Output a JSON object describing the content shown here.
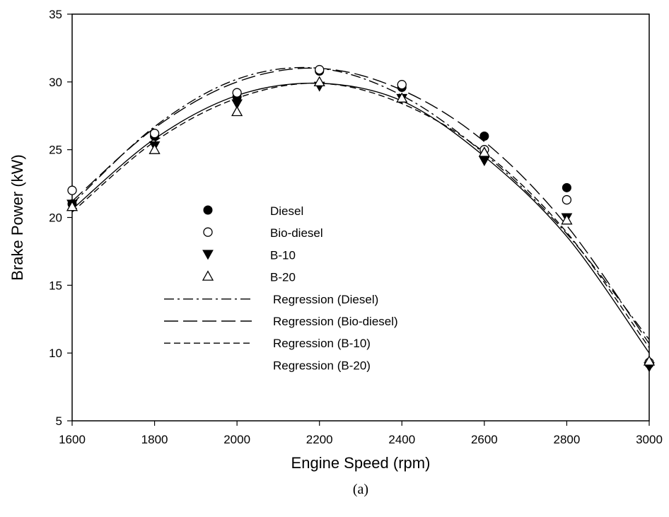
{
  "chart_data": {
    "type": "scatter",
    "xlabel": "Engine Speed (rpm)",
    "ylabel": "Brake Power (kW)",
    "caption": "(a)",
    "xlim": [
      1600,
      3000
    ],
    "ylim": [
      5,
      35
    ],
    "xticks": [
      1600,
      1800,
      2000,
      2200,
      2400,
      2600,
      2800,
      3000
    ],
    "yticks": [
      5,
      10,
      15,
      20,
      25,
      30,
      35
    ],
    "grid": false,
    "legend_position": "center-left",
    "x": [
      1600,
      1800,
      2000,
      2200,
      2400,
      2600,
      2800,
      3000
    ],
    "series": [
      {
        "name": "Diesel",
        "marker": "filled-circle",
        "values": [
          21.0,
          26.0,
          28.9,
          30.8,
          29.6,
          26.0,
          22.2,
          9.2
        ]
      },
      {
        "name": "Bio-diesel",
        "marker": "open-circle",
        "values": [
          22.0,
          26.2,
          29.2,
          30.9,
          29.8,
          25.0,
          21.3,
          9.3
        ]
      },
      {
        "name": "B-10",
        "marker": "filled-triangle-down",
        "values": [
          21.0,
          25.3,
          28.4,
          29.7,
          28.8,
          24.2,
          20.0,
          9.0
        ]
      },
      {
        "name": "B-20",
        "marker": "open-triangle-up",
        "values": [
          20.8,
          25.0,
          27.8,
          30.0,
          28.8,
          24.8,
          19.8,
          9.4
        ]
      }
    ],
    "regressions": [
      {
        "name": "Regression (Diesel)",
        "dash": "dash-dot",
        "values": [
          21.0,
          26.7,
          30.2,
          31.0,
          29.0,
          24.7,
          18.8,
          11.0
        ]
      },
      {
        "name": "Regression (Bio-diesel)",
        "dash": "long-dash",
        "values": [
          21.2,
          26.6,
          30.0,
          31.0,
          29.4,
          25.6,
          19.4,
          10.7
        ]
      },
      {
        "name": "Regression (B-10)",
        "dash": "short-dash",
        "values": [
          20.4,
          25.6,
          28.8,
          29.9,
          28.4,
          24.8,
          18.9,
          10.4
        ]
      },
      {
        "name": "Regression (B-20)",
        "dash": "solid",
        "values": [
          20.6,
          25.8,
          29.0,
          29.9,
          28.6,
          24.5,
          18.6,
          10.0
        ]
      }
    ]
  }
}
